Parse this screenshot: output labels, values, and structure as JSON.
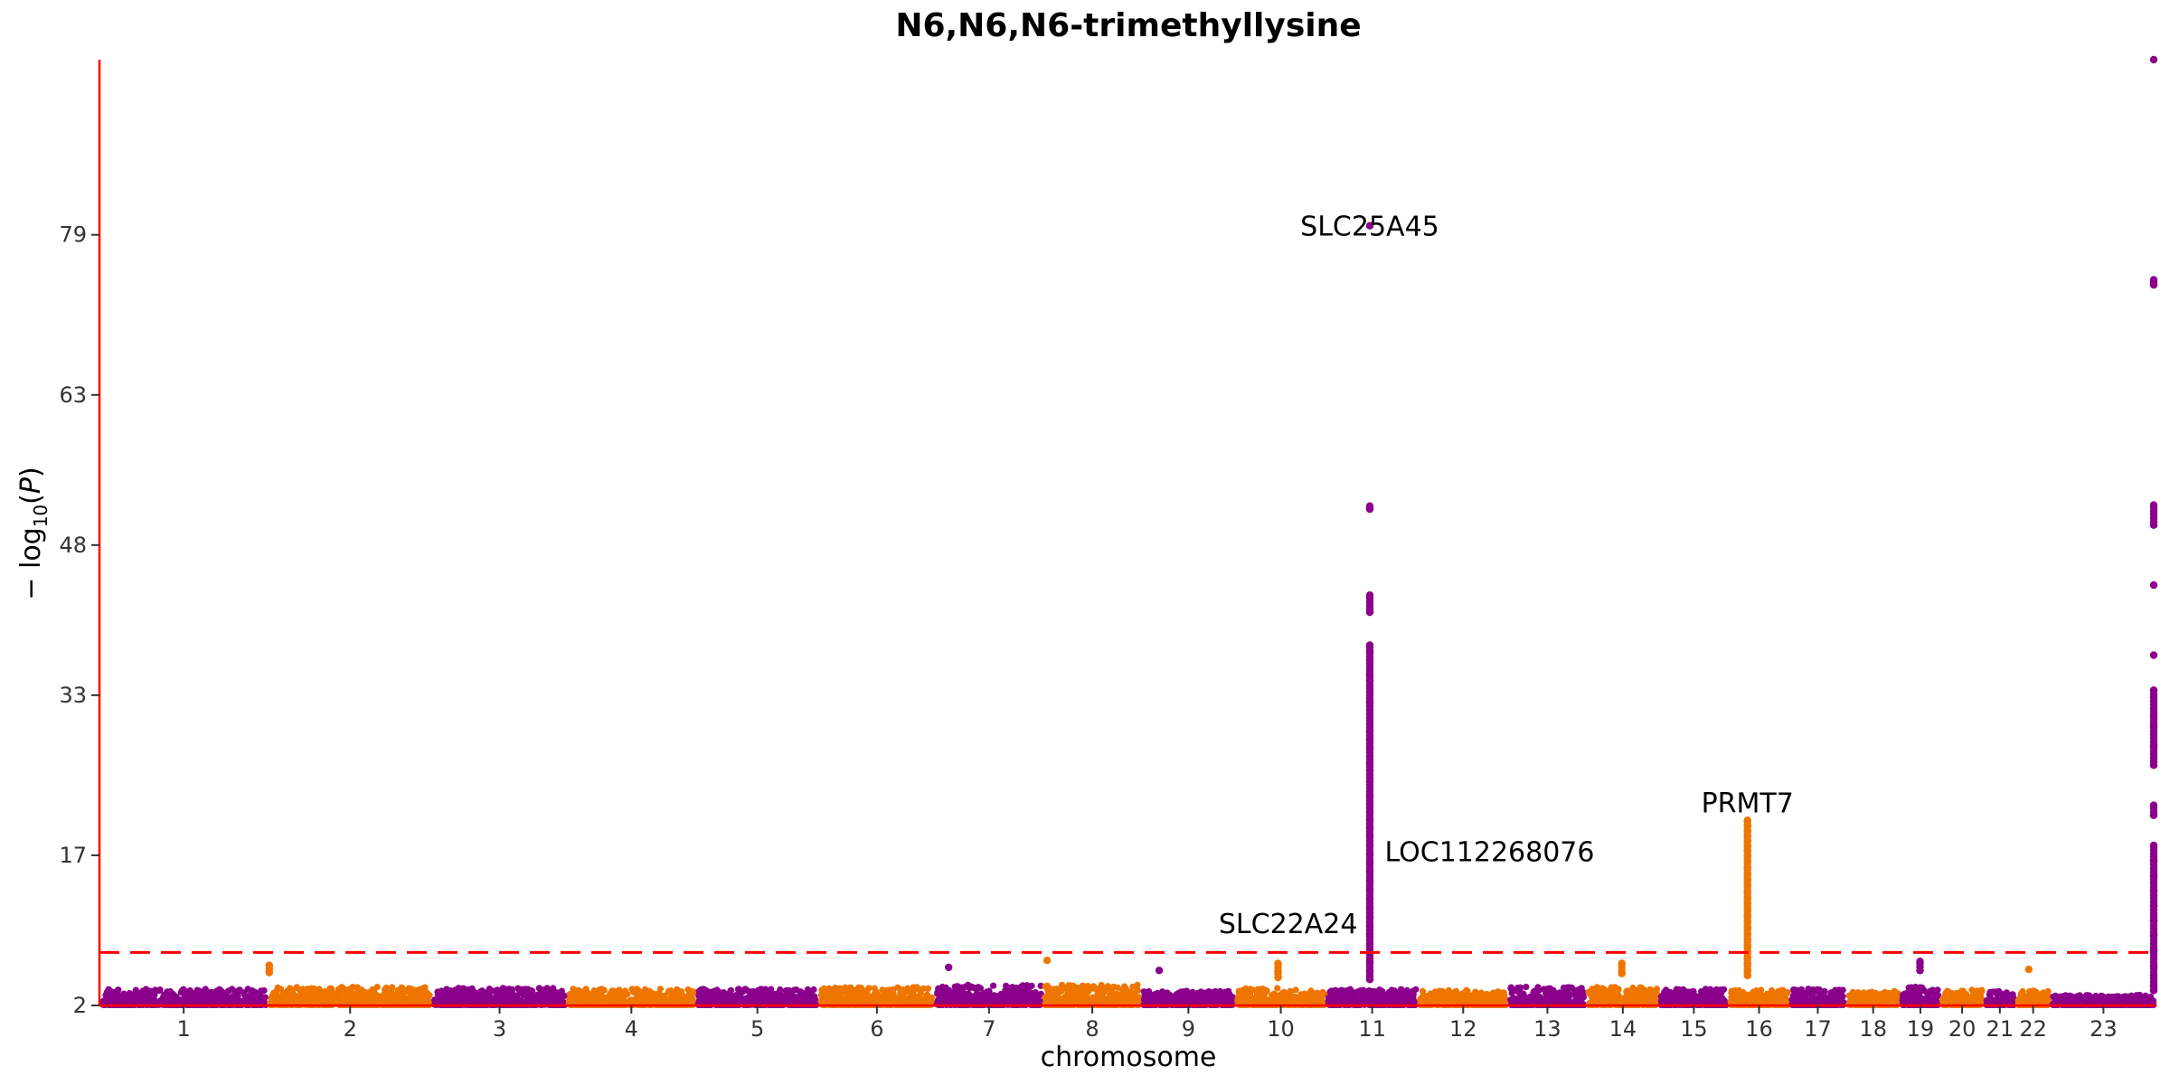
{
  "chart_data": {
    "type": "scatter",
    "title": "N6,N6,N6-trimethyllysine",
    "xlabel": "chromosome",
    "ylabel": "−log10(P)",
    "ylim": [
      2,
      96.5
    ],
    "yticks": [
      2,
      17,
      33,
      48,
      63,
      79
    ],
    "grid": false,
    "legend": "none",
    "threshold": 7.3,
    "colors": {
      "odd": "#8b008b",
      "even": "#ee7600",
      "axis": "#ff0000",
      "threshold": "#ff0000"
    },
    "chromosomes": [
      {
        "label": "1",
        "start": 0,
        "end": 248,
        "base": 3.2
      },
      {
        "label": "2",
        "start": 248,
        "end": 490,
        "base": 3.4
      },
      {
        "label": "3",
        "start": 490,
        "end": 688,
        "base": 3.3
      },
      {
        "label": "4",
        "start": 688,
        "end": 878,
        "base": 3.2
      },
      {
        "label": "5",
        "start": 878,
        "end": 1059,
        "base": 3.2
      },
      {
        "label": "6",
        "start": 1059,
        "end": 1230,
        "base": 3.4
      },
      {
        "label": "7",
        "start": 1230,
        "end": 1389,
        "base": 3.6
      },
      {
        "label": "8",
        "start": 1389,
        "end": 1534,
        "base": 3.6
      },
      {
        "label": "9",
        "start": 1534,
        "end": 1672,
        "base": 3.0
      },
      {
        "label": "10",
        "start": 1672,
        "end": 1806,
        "base": 3.3
      },
      {
        "label": "11",
        "start": 1806,
        "end": 1941,
        "base": 3.2
      },
      {
        "label": "12",
        "start": 1941,
        "end": 2074,
        "base": 3.1
      },
      {
        "label": "13",
        "start": 2074,
        "end": 2189,
        "base": 3.4
      },
      {
        "label": "14",
        "start": 2189,
        "end": 2296,
        "base": 3.4
      },
      {
        "label": "15",
        "start": 2296,
        "end": 2398,
        "base": 3.2
      },
      {
        "label": "16",
        "start": 2398,
        "end": 2488,
        "base": 3.1
      },
      {
        "label": "17",
        "start": 2488,
        "end": 2571,
        "base": 3.2
      },
      {
        "label": "18",
        "start": 2571,
        "end": 2651,
        "base": 3.0
      },
      {
        "label": "19",
        "start": 2651,
        "end": 2710,
        "base": 3.4
      },
      {
        "label": "20",
        "start": 2710,
        "end": 2774,
        "base": 3.1
      },
      {
        "label": "21",
        "start": 2774,
        "end": 2821,
        "base": 3.0
      },
      {
        "label": "22",
        "start": 2821,
        "end": 2872,
        "base": 3.1
      },
      {
        "label": "23",
        "start": 2872,
        "end": 3028,
        "base": 2.6
      }
    ],
    "peaks": [
      {
        "chrom": "11",
        "pos": 1870,
        "values": [
          79.9,
          51.9,
          51.6,
          43.0,
          41.3,
          38.0,
          37.4,
          35.1,
          34.5,
          32.3,
          29.4,
          28.6,
          27.8,
          26.2,
          25.5,
          24.4,
          23.0,
          22.1,
          21.4,
          20.6,
          19.8,
          19.0,
          18.1,
          17.2,
          16.3,
          15.4,
          14.5,
          13.6,
          12.7,
          11.8,
          10.9,
          10.0,
          9.1,
          8.2,
          7.3,
          6.4,
          5.5,
          4.6
        ]
      },
      {
        "chrom": "16",
        "pos": 2426,
        "values": [
          20.5,
          20.0,
          19.5,
          19.0,
          18.5,
          18.0,
          17.5,
          17.0,
          16.4,
          15.8,
          15.2,
          14.6,
          14.0,
          13.4,
          12.8,
          12.2,
          11.6,
          11.0,
          10.4,
          9.8,
          9.2,
          8.6,
          8.0,
          7.4,
          6.8,
          6.2,
          5.6,
          5.0
        ]
      },
      {
        "chrom": "23",
        "pos": 3024,
        "values": [
          96.5,
          74.5,
          74.0,
          52.0,
          50.0,
          44.0,
          37.0,
          33.5,
          31.0,
          30.0,
          28.0,
          26.0,
          22.0,
          21.0,
          18.0,
          16.5,
          15.0,
          13.5,
          12.0,
          10.5,
          9.0,
          7.5,
          6.0,
          5.0,
          4.0,
          3.5
        ]
      },
      {
        "chrom": "10",
        "pos": 1735,
        "values": [
          6.2,
          5.4,
          4.8
        ]
      },
      {
        "chrom": "2",
        "pos": 250,
        "values": [
          6.0,
          5.3
        ]
      },
      {
        "chrom": "14",
        "pos": 2241,
        "values": [
          6.2,
          5.2
        ]
      },
      {
        "chrom": "19",
        "pos": 2680,
        "values": [
          6.4,
          5.5
        ]
      },
      {
        "chrom": "8",
        "pos": 1395,
        "values": [
          6.5
        ]
      },
      {
        "chrom": "7",
        "pos": 1250,
        "values": [
          5.8
        ]
      },
      {
        "chrom": "9",
        "pos": 1560,
        "values": [
          5.5
        ]
      },
      {
        "chrom": "22",
        "pos": 2840,
        "values": [
          5.6
        ]
      }
    ],
    "annotations": [
      {
        "label": "SLC25A45",
        "x": 1870,
        "y": 79.9,
        "anchor": "middle"
      },
      {
        "label": "LOC112268076",
        "x": 1892,
        "y": 17.4,
        "anchor": "start"
      },
      {
        "label": "SLC22A24",
        "x": 1852,
        "y": 10.2,
        "anchor": "end"
      },
      {
        "label": "PRMT7",
        "x": 2426,
        "y": 22.3,
        "anchor": "middle"
      }
    ]
  }
}
